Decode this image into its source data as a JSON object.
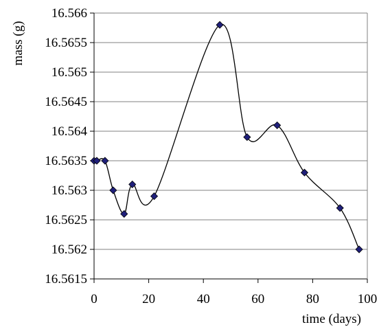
{
  "chart_data": {
    "type": "line",
    "title": "",
    "xlabel": "time (days)",
    "ylabel": "mass (g)",
    "xlim": [
      0,
      100
    ],
    "ylim": [
      16.5615,
      16.566
    ],
    "x_ticks": [
      0,
      20,
      40,
      60,
      80,
      100
    ],
    "x_tick_labels": [
      "0",
      "20",
      "40",
      "60",
      "80",
      "100"
    ],
    "y_ticks": [
      16.5615,
      16.562,
      16.5625,
      16.563,
      16.5635,
      16.564,
      16.5645,
      16.565,
      16.5655,
      16.566
    ],
    "y_tick_labels": [
      "16.5615",
      "16.562",
      "16.5625",
      "16.563",
      "16.5635",
      "16.564",
      "16.5645",
      "16.565",
      "16.5655",
      "16.566"
    ],
    "grid": "horizontal",
    "legend": "none",
    "marker": "diamond",
    "colors": {
      "marker": "#1f1f7a",
      "line": "#000000",
      "grid": "#808080"
    },
    "series": [
      {
        "x": [
          0,
          1,
          4,
          7,
          11,
          14,
          22,
          46,
          56,
          67,
          77,
          90,
          97
        ],
        "values": [
          16.5635,
          16.5635,
          16.5635,
          16.563,
          16.5626,
          16.5631,
          16.5629,
          16.5658,
          16.5639,
          16.5641,
          16.5633,
          16.5627,
          16.562
        ]
      }
    ]
  }
}
